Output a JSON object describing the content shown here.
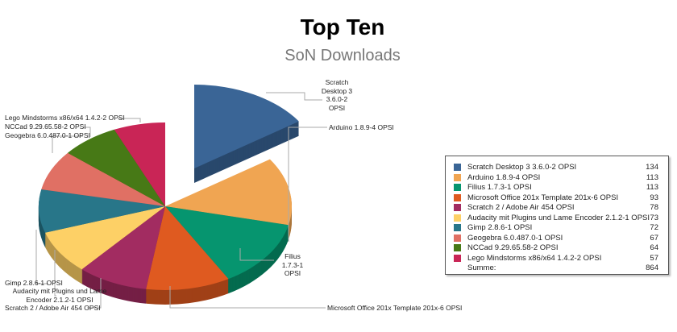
{
  "chart_data": {
    "type": "pie",
    "style": "3d-exploded",
    "title": "Top Ten",
    "subtitle": "SoN Downloads",
    "slices": [
      {
        "label": "Scratch Desktop 3 3.6.0-2 OPSI",
        "value": 134,
        "color": "#3a6596",
        "exploded": true
      },
      {
        "label": "Arduino 1.8.9-4 OPSI",
        "value": 113,
        "color": "#f0a552"
      },
      {
        "label": "Filius 1.7.3-1 OPSI",
        "value": 113,
        "color": "#06956f"
      },
      {
        "label": "Microsoft Office 201x Template 201x-6 OPSI",
        "value": 93,
        "color": "#df5a20"
      },
      {
        "label": "Scratch 2 / Adobe Air 454 OPSI",
        "value": 78,
        "color": "#a22c61"
      },
      {
        "label": "Audacity mit Plugins und Lame Encoder 2.1.2-1 OPSI",
        "value": 73,
        "color": "#fdd066"
      },
      {
        "label": "Gimp 2.8.6-1 OPSI",
        "value": 72,
        "color": "#287689"
      },
      {
        "label": "Geogebra 6.0.487.0-1 OPSI",
        "value": 67,
        "color": "#e07064"
      },
      {
        "label": "NCCad 9.29.65.58-2 OPSI",
        "value": 64,
        "color": "#477916"
      },
      {
        "label": "Lego Mindstorms x86/x64 1.4.2-2 OPSI",
        "value": 57,
        "color": "#c92556"
      }
    ],
    "legend": {
      "position": "right",
      "sum_label": "Summe:",
      "sum_value": 864
    }
  }
}
